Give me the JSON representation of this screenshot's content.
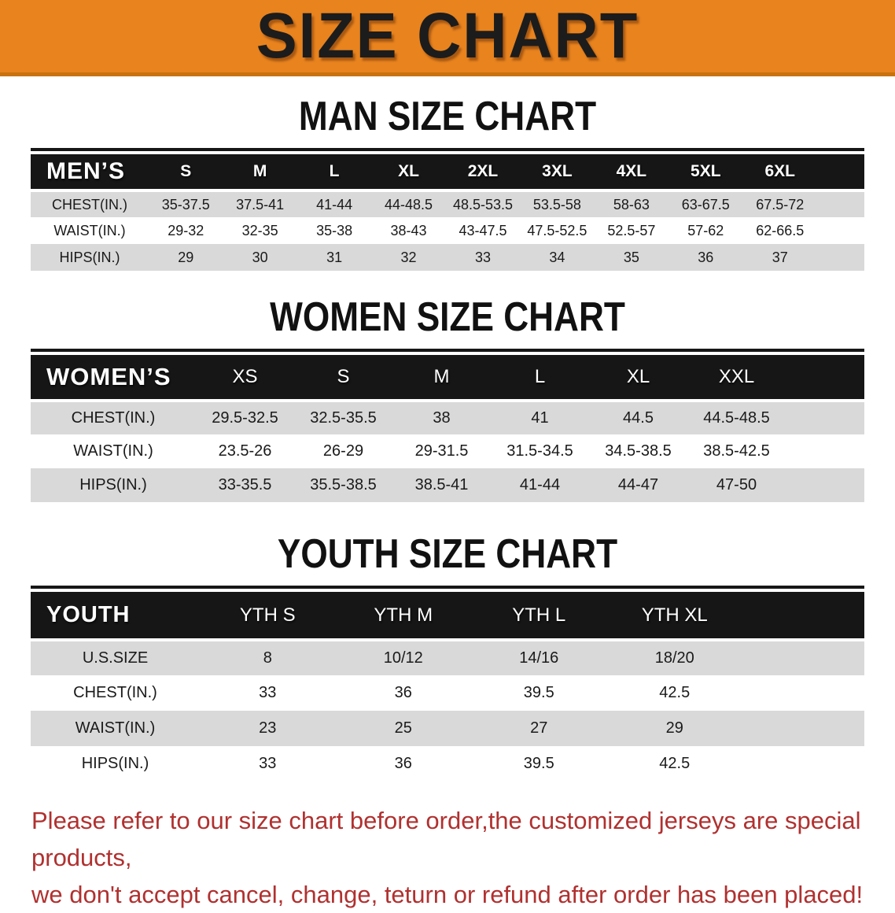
{
  "banner": {
    "title": "SIZE CHART",
    "bg_color": "#E8831E",
    "edge_color": "#C9720F"
  },
  "sections": {
    "man": {
      "heading": "MAN SIZE CHART",
      "table": {
        "corner": "MEN’S",
        "sizes": [
          "S",
          "M",
          "L",
          "XL",
          "2XL",
          "3XL",
          "4XL",
          "5XL",
          "6XL"
        ],
        "rows": [
          {
            "label": "CHEST(IN.)",
            "values": [
              "35-37.5",
              "37.5-41",
              "41-44",
              "44-48.5",
              "48.5-53.5",
              "53.5-58",
              "58-63",
              "63-67.5",
              "67.5-72"
            ]
          },
          {
            "label": "WAIST(IN.)",
            "values": [
              "29-32",
              "32-35",
              "35-38",
              "38-43",
              "43-47.5",
              "47.5-52.5",
              "52.5-57",
              "57-62",
              "62-66.5"
            ]
          },
          {
            "label": "HIPS(IN.)",
            "values": [
              "29",
              "30",
              "31",
              "32",
              "33",
              "34",
              "35",
              "36",
              "37"
            ]
          }
        ]
      }
    },
    "women": {
      "heading": "WOMEN SIZE CHART",
      "table": {
        "corner": "WOMEN’S",
        "sizes": [
          "XS",
          "S",
          "M",
          "L",
          "XL",
          "XXL"
        ],
        "rows": [
          {
            "label": "CHEST(IN.)",
            "values": [
              "29.5-32.5",
              "32.5-35.5",
              "38",
              "41",
              "44.5",
              "44.5-48.5"
            ]
          },
          {
            "label": "WAIST(IN.)",
            "values": [
              "23.5-26",
              "26-29",
              "29-31.5",
              "31.5-34.5",
              "34.5-38.5",
              "38.5-42.5"
            ]
          },
          {
            "label": "HIPS(IN.)",
            "values": [
              "33-35.5",
              "35.5-38.5",
              "38.5-41",
              "41-44",
              "44-47",
              "47-50"
            ]
          }
        ]
      }
    },
    "youth": {
      "heading": "YOUTH SIZE CHART",
      "table": {
        "corner": "YOUTH",
        "sizes": [
          "YTH S",
          "YTH M",
          "YTH L",
          "YTH XL"
        ],
        "rows": [
          {
            "label": "U.S.SIZE",
            "values": [
              "8",
              "10/12",
              "14/16",
              "18/20"
            ]
          },
          {
            "label": "CHEST(IN.)",
            "values": [
              "33",
              "36",
              "39.5",
              "42.5"
            ]
          },
          {
            "label": "WAIST(IN.)",
            "values": [
              "23",
              "25",
              "27",
              "29"
            ]
          },
          {
            "label": "HIPS(IN.)",
            "values": [
              "33",
              "36",
              "39.5",
              "42.5"
            ]
          }
        ]
      }
    }
  },
  "note": {
    "line1": "Please refer to our size chart before order,the customized jerseys are special products,",
    "line2": "we don't accept cancel, change, teturn or refund after order has been placed!"
  },
  "colors": {
    "banner_bg": "#E8831E",
    "header_band": "#161616",
    "stripe": "#D9D9D9",
    "note_red": "#B03130"
  }
}
